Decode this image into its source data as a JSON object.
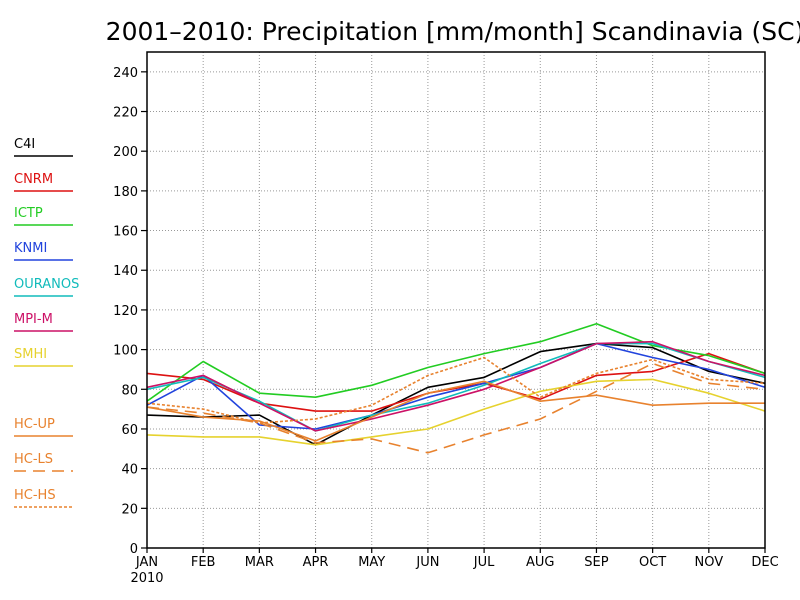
{
  "chart_data": {
    "type": "line",
    "title": "2001–2010: Precipitation [mm/month] Scandinavia (SC)",
    "x": [
      "JAN",
      "FEB",
      "MAR",
      "APR",
      "MAY",
      "JUN",
      "JUL",
      "AUG",
      "SEP",
      "OCT",
      "NOV",
      "DEC"
    ],
    "x_year_label": "2010",
    "y_ticks": [
      0,
      20,
      40,
      60,
      80,
      100,
      120,
      140,
      160,
      180,
      200,
      220,
      240
    ],
    "ylim": [
      0,
      250
    ],
    "grid": true,
    "legend_position": "left",
    "series": [
      {
        "name": "C4I",
        "color": "#000000",
        "dash": "solid",
        "values": [
          67,
          66,
          67,
          52,
          67,
          81,
          86,
          99,
          103,
          101,
          89,
          83
        ]
      },
      {
        "name": "CNRM",
        "color": "#dd1111",
        "dash": "solid",
        "values": [
          88,
          85,
          73,
          69,
          69,
          78,
          83,
          75,
          87,
          89,
          98,
          88
        ]
      },
      {
        "name": "ICTP",
        "color": "#22cc22",
        "dash": "solid",
        "values": [
          74,
          94,
          78,
          76,
          82,
          91,
          98,
          104,
          113,
          102,
          97,
          88
        ]
      },
      {
        "name": "KNMI",
        "color": "#2244dd",
        "dash": "solid",
        "values": [
          72,
          87,
          62,
          60,
          67,
          76,
          83,
          91,
          103,
          96,
          90,
          81
        ]
      },
      {
        "name": "OURANOS",
        "color": "#11bbbb",
        "dash": "solid",
        "values": [
          80,
          86,
          74,
          59,
          67,
          73,
          82,
          93,
          103,
          103,
          94,
          86
        ]
      },
      {
        "name": "MPI-M",
        "color": "#cc1166",
        "dash": "solid",
        "values": [
          81,
          87,
          73,
          59,
          65,
          72,
          80,
          91,
          103,
          104,
          94,
          87
        ]
      },
      {
        "name": "SMHI",
        "color": "#e6d22e",
        "dash": "solid",
        "values": [
          57,
          56,
          56,
          52,
          56,
          60,
          70,
          79,
          84,
          85,
          78,
          69
        ]
      },
      {
        "name": "HC-UP",
        "color": "#e8822e",
        "dash": "solid",
        "values": [
          71,
          66,
          64,
          54,
          66,
          78,
          84,
          74,
          77,
          72,
          73,
          73
        ]
      },
      {
        "name": "HC-LS",
        "color": "#e8822e",
        "dash": "longdash",
        "values": [
          71,
          68,
          63,
          53,
          55,
          48,
          57,
          65,
          79,
          93,
          83,
          80
        ]
      },
      {
        "name": "HC-HS",
        "color": "#e8822e",
        "dash": "dotted",
        "values": [
          73,
          70,
          63,
          65,
          72,
          87,
          96,
          76,
          88,
          95,
          85,
          83
        ]
      }
    ]
  }
}
